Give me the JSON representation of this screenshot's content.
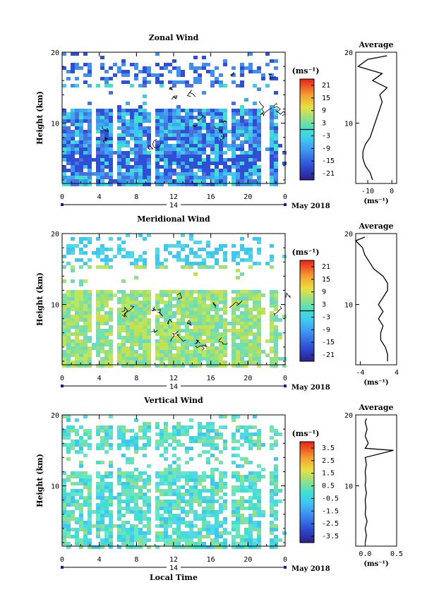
{
  "chart_data": [
    {
      "type": "heatmap",
      "title": "Zonal Wind",
      "ylabel": "Height (km)",
      "xlabel": "",
      "x_ticks": [
        "0",
        "4",
        "8",
        "12",
        "16",
        "20",
        "0"
      ],
      "y_ticks": [
        "10",
        "20"
      ],
      "ylim": [
        1.5,
        20
      ],
      "day_label": "14",
      "date_label": "May 2018",
      "colorbar": {
        "unit": "(ms⁻¹)",
        "ticks": [
          "21",
          "15",
          "9",
          "3",
          "-3",
          "-9",
          "-15",
          "-21"
        ],
        "range": [
          -24,
          24
        ]
      },
      "average": {
        "title": "Average",
        "xlabel": "(ms⁻¹)",
        "x_ticks": [
          "-10",
          "0"
        ],
        "xlim": [
          -15,
          2
        ],
        "y_ticks": [
          "10",
          "20"
        ],
        "profile": [
          [
            -8,
            2
          ],
          [
            -9,
            3
          ],
          [
            -11,
            4
          ],
          [
            -12,
            5
          ],
          [
            -12,
            6
          ],
          [
            -11,
            7
          ],
          [
            -9,
            8
          ],
          [
            -8,
            9
          ],
          [
            -7,
            10
          ],
          [
            -6,
            11
          ],
          [
            -5,
            12
          ],
          [
            -4,
            13
          ],
          [
            -5,
            14
          ],
          [
            -2,
            15
          ],
          [
            -8,
            16
          ],
          [
            -4,
            17
          ],
          [
            -14,
            18
          ],
          [
            -10,
            19
          ],
          [
            -2,
            19.5
          ]
        ]
      }
    },
    {
      "type": "heatmap",
      "title": "Meridional Wind",
      "ylabel": "Height (km)",
      "xlabel": "",
      "x_ticks": [
        "0",
        "4",
        "8",
        "12",
        "16",
        "20",
        "0"
      ],
      "y_ticks": [
        "10",
        "20"
      ],
      "ylim": [
        1.5,
        20
      ],
      "day_label": "14",
      "date_label": "May 2018",
      "colorbar": {
        "unit": "(ms⁻¹)",
        "ticks": [
          "21",
          "15",
          "9",
          "3",
          "-3",
          "-9",
          "-15",
          "-21"
        ],
        "range": [
          -24,
          24
        ]
      },
      "average": {
        "title": "Average",
        "xlabel": "(ms⁻¹)",
        "x_ticks": [
          "-4",
          "4"
        ],
        "xlim": [
          -5,
          4
        ],
        "y_ticks": [
          "10",
          "20"
        ],
        "profile": [
          [
            2,
            2
          ],
          [
            2,
            3
          ],
          [
            1.5,
            4
          ],
          [
            0.5,
            5
          ],
          [
            0.5,
            6
          ],
          [
            1,
            7
          ],
          [
            0,
            8
          ],
          [
            1,
            9
          ],
          [
            0,
            10
          ],
          [
            1,
            11
          ],
          [
            2,
            12
          ],
          [
            2,
            13
          ],
          [
            1,
            14
          ],
          [
            -1,
            15
          ],
          [
            -2,
            16
          ],
          [
            -3,
            17
          ],
          [
            -3.5,
            18
          ],
          [
            -5,
            19
          ],
          [
            -3,
            19.5
          ]
        ]
      }
    },
    {
      "type": "heatmap",
      "title": "Vertical Wind",
      "ylabel": "Height (km)",
      "xlabel": "Local Time",
      "x_ticks": [
        "0",
        "4",
        "8",
        "12",
        "16",
        "20",
        "0"
      ],
      "y_ticks": [
        "10",
        "20"
      ],
      "ylim": [
        1.5,
        20
      ],
      "day_label": "14",
      "date_label": "May 2018",
      "colorbar": {
        "unit": "(ms⁻¹)",
        "ticks": [
          "3.5",
          "2.5",
          "1.5",
          "0.5",
          "-0.5",
          "-1.5",
          "-2.5",
          "-3.5"
        ],
        "range": [
          -4,
          4
        ]
      },
      "average": {
        "title": "Average",
        "xlabel": "(ms⁻¹)",
        "x_ticks": [
          "0.0",
          "0.5"
        ],
        "xlim": [
          -0.15,
          0.5
        ],
        "y_ticks": [
          "10",
          "20"
        ],
        "profile": [
          [
            0,
            2
          ],
          [
            0.02,
            3
          ],
          [
            0,
            4
          ],
          [
            0.03,
            5
          ],
          [
            0,
            6
          ],
          [
            0.01,
            7
          ],
          [
            0,
            8
          ],
          [
            0.02,
            9
          ],
          [
            0,
            10
          ],
          [
            0.01,
            11
          ],
          [
            0,
            12
          ],
          [
            0.02,
            13
          ],
          [
            0,
            14
          ],
          [
            0.45,
            15
          ],
          [
            0,
            15.3
          ],
          [
            0.05,
            16
          ],
          [
            0,
            17
          ],
          [
            0.03,
            18
          ],
          [
            0,
            19
          ],
          [
            0.02,
            19.5
          ]
        ]
      }
    }
  ]
}
